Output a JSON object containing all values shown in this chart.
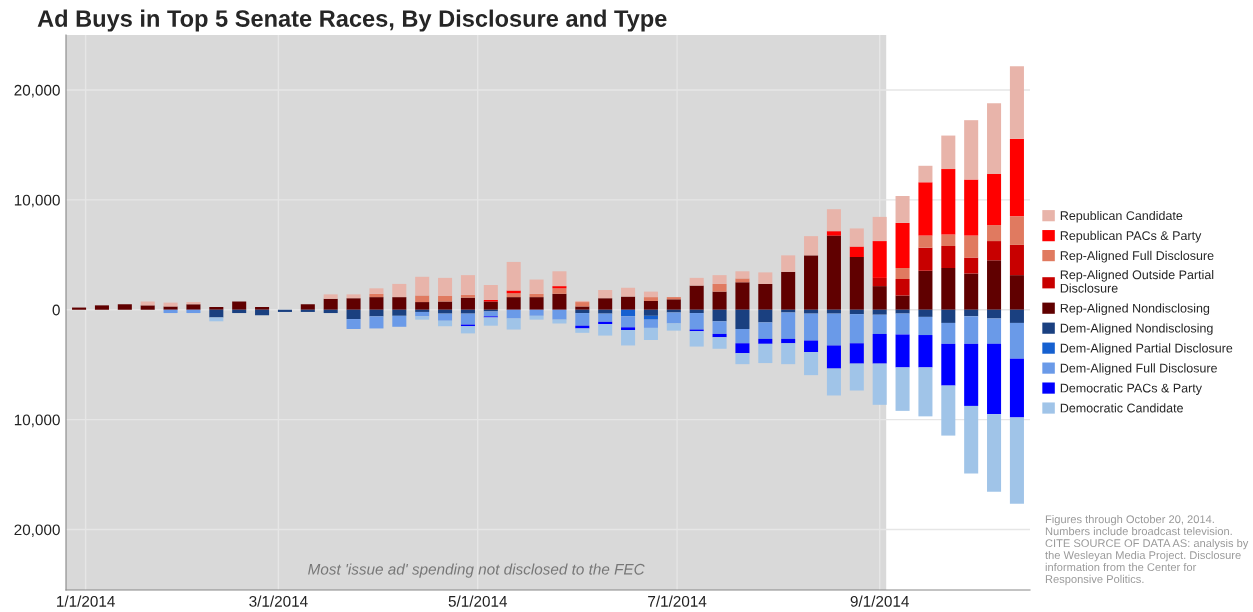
{
  "chart_data": {
    "type": "bar",
    "stacked": true,
    "title": "Ad Buys in Top 5 Senate Races, By Disclosure and Type",
    "x": [
      "2013-12-30",
      "2014-01-06",
      "2014-01-13",
      "2014-01-20",
      "2014-01-27",
      "2014-02-03",
      "2014-02-10",
      "2014-02-17",
      "2014-02-24",
      "2014-03-03",
      "2014-03-10",
      "2014-03-17",
      "2014-03-24",
      "2014-03-31",
      "2014-04-07",
      "2014-04-14",
      "2014-04-21",
      "2014-04-28",
      "2014-05-05",
      "2014-05-12",
      "2014-05-19",
      "2014-05-26",
      "2014-06-02",
      "2014-06-09",
      "2014-06-16",
      "2014-06-23",
      "2014-06-30",
      "2014-07-07",
      "2014-07-14",
      "2014-07-21",
      "2014-07-28",
      "2014-08-04",
      "2014-08-11",
      "2014-08-18",
      "2014-08-25",
      "2014-09-01",
      "2014-09-08",
      "2014-09-15",
      "2014-09-22",
      "2014-09-29",
      "2014-10-06",
      "2014-10-13"
    ],
    "series": [
      {
        "name": "Rep-Aligned Nondisclosing",
        "color": "#600000",
        "values": [
          200,
          400,
          500,
          400,
          300,
          500,
          250,
          750,
          250,
          null,
          500,
          1000,
          1050,
          1150,
          1150,
          700,
          750,
          1100,
          750,
          1150,
          1150,
          1450,
          300,
          1050,
          1200,
          800,
          950,
          2200,
          1650,
          2500,
          2350,
          3450,
          4950,
          6750,
          4800,
          2150,
          1300,
          3550,
          3800,
          3300,
          4500,
          3150
        ]
      },
      {
        "name": "Rep-Aligned Outside Partial\nDisclosure",
        "color": "#c80000",
        "values": [
          null,
          null,
          null,
          null,
          null,
          null,
          null,
          null,
          null,
          null,
          null,
          null,
          null,
          null,
          null,
          null,
          null,
          null,
          null,
          null,
          null,
          null,
          null,
          null,
          null,
          null,
          null,
          null,
          null,
          null,
          null,
          null,
          null,
          null,
          null,
          750,
          1500,
          2100,
          2000,
          1450,
          1750,
          2750
        ]
      },
      {
        "name": "Rep-Aligned Full Disclosure",
        "color": "#e07a60",
        "values": [
          null,
          null,
          null,
          null,
          null,
          null,
          null,
          null,
          null,
          null,
          null,
          null,
          null,
          300,
          null,
          600,
          500,
          250,
          null,
          350,
          300,
          500,
          400,
          null,
          null,
          350,
          200,
          null,
          700,
          350,
          null,
          null,
          null,
          null,
          null,
          null,
          1000,
          1100,
          1050,
          2000,
          1450,
          2600
        ]
      },
      {
        "name": "Republican PACs & Party",
        "color": "#ff0000",
        "values": [
          null,
          null,
          null,
          null,
          null,
          null,
          null,
          null,
          null,
          null,
          null,
          null,
          null,
          null,
          null,
          null,
          null,
          null,
          150,
          250,
          null,
          200,
          null,
          null,
          null,
          null,
          null,
          null,
          null,
          null,
          null,
          null,
          null,
          400,
          950,
          3350,
          4100,
          4850,
          5950,
          5100,
          4650,
          7050
        ]
      },
      {
        "name": "Republican Candidate",
        "color": "#e8b4aa",
        "values": [
          null,
          null,
          null,
          350,
          350,
          200,
          null,
          null,
          null,
          null,
          null,
          400,
          350,
          500,
          1200,
          1700,
          1650,
          1800,
          1350,
          2600,
          1300,
          1350,
          100,
          750,
          800,
          500,
          null,
          700,
          800,
          650,
          1050,
          1500,
          1750,
          2000,
          1650,
          2200,
          2450,
          1500,
          3050,
          5400,
          6450,
          6600
        ]
      },
      {
        "name": "Dem-Aligned Nondisclosing",
        "color": "#1a4080",
        "values": [
          null,
          null,
          null,
          null,
          null,
          null,
          -700,
          -300,
          -500,
          -200,
          -200,
          -300,
          -850,
          -600,
          -550,
          -200,
          -350,
          -350,
          -150,
          null,
          null,
          null,
          -300,
          -350,
          null,
          -550,
          -250,
          -300,
          -1050,
          -1750,
          -1150,
          -250,
          -350,
          -350,
          -400,
          -450,
          -350,
          -650,
          -1200,
          -600,
          -800,
          -1200
        ]
      },
      {
        "name": "Dem-Aligned Partial Disclosure",
        "color": "#1560d0",
        "values": [
          null,
          null,
          null,
          null,
          null,
          null,
          null,
          null,
          null,
          null,
          null,
          null,
          null,
          null,
          null,
          null,
          null,
          null,
          null,
          null,
          null,
          null,
          null,
          null,
          -600,
          -350,
          null,
          null,
          null,
          null,
          null,
          null,
          null,
          null,
          null,
          null,
          null,
          null,
          null,
          null,
          null,
          null
        ]
      },
      {
        "name": "Dem-Aligned Full Disclosure",
        "color": "#6a9ae8",
        "values": [
          null,
          null,
          null,
          null,
          -300,
          -300,
          null,
          null,
          null,
          null,
          null,
          null,
          -900,
          -1100,
          -1000,
          -400,
          -650,
          -1000,
          -450,
          -800,
          -550,
          -900,
          -1150,
          -750,
          -1000,
          -750,
          -1000,
          -1500,
          -1150,
          -1300,
          -1500,
          -2400,
          -2450,
          -2900,
          -2650,
          -1750,
          -1900,
          -1650,
          -1900,
          -2500,
          -2300,
          -3250
        ]
      },
      {
        "name": "Democratic PACs & Party",
        "color": "#0000ff",
        "values": [
          null,
          null,
          null,
          null,
          null,
          null,
          null,
          null,
          null,
          null,
          null,
          null,
          null,
          null,
          null,
          null,
          null,
          -150,
          -100,
          null,
          null,
          null,
          -250,
          -200,
          -250,
          null,
          null,
          -150,
          -300,
          -900,
          -450,
          -400,
          -1050,
          -2100,
          -1850,
          -2700,
          -3000,
          -2950,
          -3800,
          -5650,
          -6400,
          -5350
        ]
      },
      {
        "name": "Democratic Candidate",
        "color": "#a0c4e8",
        "values": [
          null,
          null,
          null,
          null,
          null,
          null,
          -350,
          null,
          null,
          null,
          null,
          null,
          null,
          null,
          null,
          -300,
          -500,
          -650,
          -750,
          -1000,
          -350,
          -350,
          -400,
          -1050,
          -1400,
          -1100,
          -650,
          -1400,
          -1050,
          -1000,
          -1750,
          -1900,
          -2100,
          -2450,
          -2450,
          -3750,
          -3950,
          -4450,
          -4550,
          -6150,
          -7050,
          -7850
        ]
      }
    ],
    "xlim": [
      "2013-12-26",
      "2014-10-17"
    ],
    "xticks": [
      {
        "value": "2014-01-01",
        "label": "1/1/2014"
      },
      {
        "value": "2014-03-01",
        "label": "3/1/2014"
      },
      {
        "value": "2014-05-01",
        "label": "5/1/2014"
      },
      {
        "value": "2014-07-01",
        "label": "7/1/2014"
      },
      {
        "value": "2014-09-01",
        "label": "9/1/2014"
      }
    ],
    "ylim": [
      -25500,
      25000
    ],
    "yticks": [
      {
        "value": -20000,
        "label": "20,000"
      },
      {
        "value": -10000,
        "label": "10,000"
      },
      0,
      {
        "value": 10000,
        "label": "10,000"
      },
      {
        "value": 20000,
        "label": "20,000"
      }
    ],
    "bands": [
      {
        "axis": "x",
        "from": "2013-12-26",
        "to": "2014-09-03",
        "label": "Most 'issue ad' spending not disclosed to the FEC",
        "color": "#d9d9d9"
      }
    ],
    "grid": true,
    "legend": "right",
    "annotations": [
      "Figures through October 20, 2014. Numbers include broadcast television. CITE SOURCE OF DATA AS: analysis by the Wesleyan Media Project. Disclosure information from the Center for Responsive Politics."
    ]
  }
}
